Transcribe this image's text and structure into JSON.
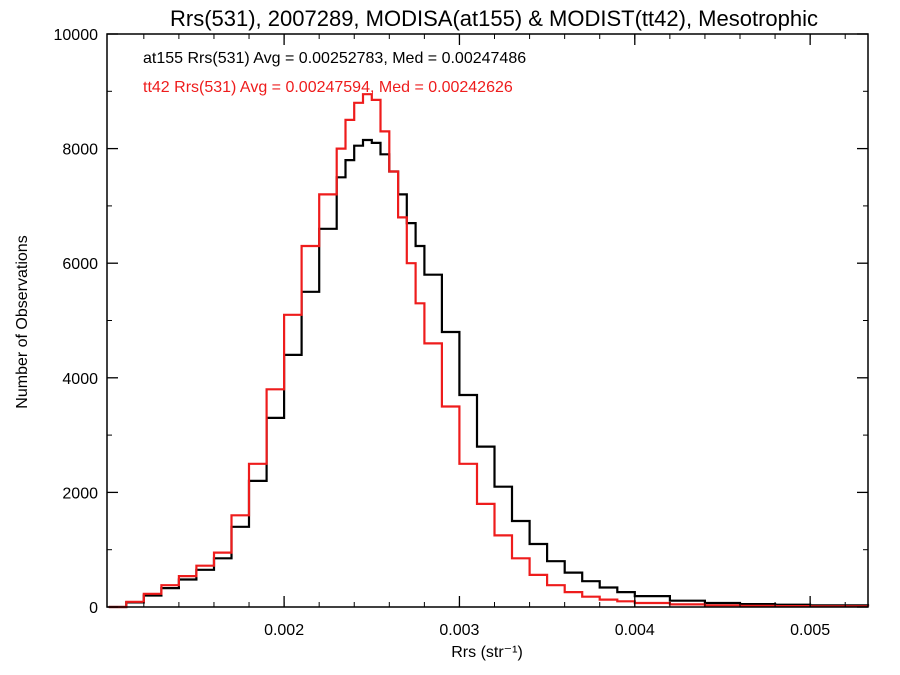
{
  "chart_data": {
    "type": "line",
    "title": "Rrs(531), 2007289, MODISA(at155) & MODIST(tt42), Mesotrophic",
    "xlabel": "Rrs (str⁻¹)",
    "ylabel": "Number of Observations",
    "xlim": [
      0.00099,
      0.00533
    ],
    "ylim": [
      0,
      10000
    ],
    "x_ticks": [
      0.002,
      0.003,
      0.004,
      0.005
    ],
    "x_tick_labels": [
      "0.002",
      "0.003",
      "0.004",
      "0.005"
    ],
    "y_ticks": [
      0,
      2000,
      4000,
      6000,
      8000,
      10000
    ],
    "y_tick_labels": [
      "0",
      "2000",
      "4000",
      "6000",
      "8000",
      "10000"
    ],
    "grid": false,
    "annotations": [
      {
        "text": "at155 Rrs(531) Avg = 0.00252783, Med = 0.00247486",
        "color": "#000000"
      },
      {
        "text": "tt42 Rrs(531) Avg = 0.00247594, Med = 0.00242626",
        "color": "#ee1c1c"
      }
    ],
    "series": [
      {
        "color": "#000000",
        "x": [
          0.001,
          0.0011,
          0.0012,
          0.0013,
          0.0014,
          0.0015,
          0.0016,
          0.0017,
          0.0018,
          0.0019,
          0.002,
          0.0021,
          0.0022,
          0.0023,
          0.00235,
          0.0024,
          0.00245,
          0.0025,
          0.00255,
          0.0026,
          0.00265,
          0.0027,
          0.00275,
          0.0028,
          0.0029,
          0.003,
          0.0031,
          0.0032,
          0.0033,
          0.0034,
          0.0035,
          0.0036,
          0.0037,
          0.0038,
          0.0039,
          0.004,
          0.0042,
          0.0044,
          0.0046,
          0.0048,
          0.005,
          0.00533
        ],
        "y": [
          0,
          80,
          200,
          330,
          480,
          650,
          850,
          1400,
          2200,
          3300,
          4400,
          5500,
          6600,
          7500,
          7800,
          8050,
          8150,
          8100,
          7900,
          7600,
          7200,
          6700,
          6300,
          5800,
          4800,
          3700,
          2800,
          2100,
          1500,
          1100,
          800,
          600,
          450,
          340,
          260,
          190,
          110,
          70,
          50,
          40,
          30,
          20
        ]
      },
      {
        "color": "#ee1c1c",
        "x": [
          0.001,
          0.0011,
          0.0012,
          0.0013,
          0.0014,
          0.0015,
          0.0016,
          0.0017,
          0.0018,
          0.0019,
          0.002,
          0.0021,
          0.0022,
          0.0023,
          0.00235,
          0.0024,
          0.00245,
          0.0025,
          0.00255,
          0.0026,
          0.00265,
          0.0027,
          0.00275,
          0.0028,
          0.0029,
          0.003,
          0.0031,
          0.0032,
          0.0033,
          0.0034,
          0.0035,
          0.0036,
          0.0037,
          0.0038,
          0.0039,
          0.004,
          0.0042,
          0.0044,
          0.0046,
          0.0048,
          0.005,
          0.00533
        ],
        "y": [
          0,
          90,
          230,
          380,
          540,
          720,
          950,
          1600,
          2500,
          3800,
          5100,
          6300,
          7200,
          8000,
          8500,
          8800,
          8950,
          8850,
          8300,
          7600,
          6800,
          6000,
          5300,
          4600,
          3500,
          2500,
          1800,
          1250,
          850,
          560,
          380,
          260,
          180,
          130,
          100,
          70,
          45,
          30,
          20,
          15,
          10,
          5
        ]
      }
    ]
  }
}
